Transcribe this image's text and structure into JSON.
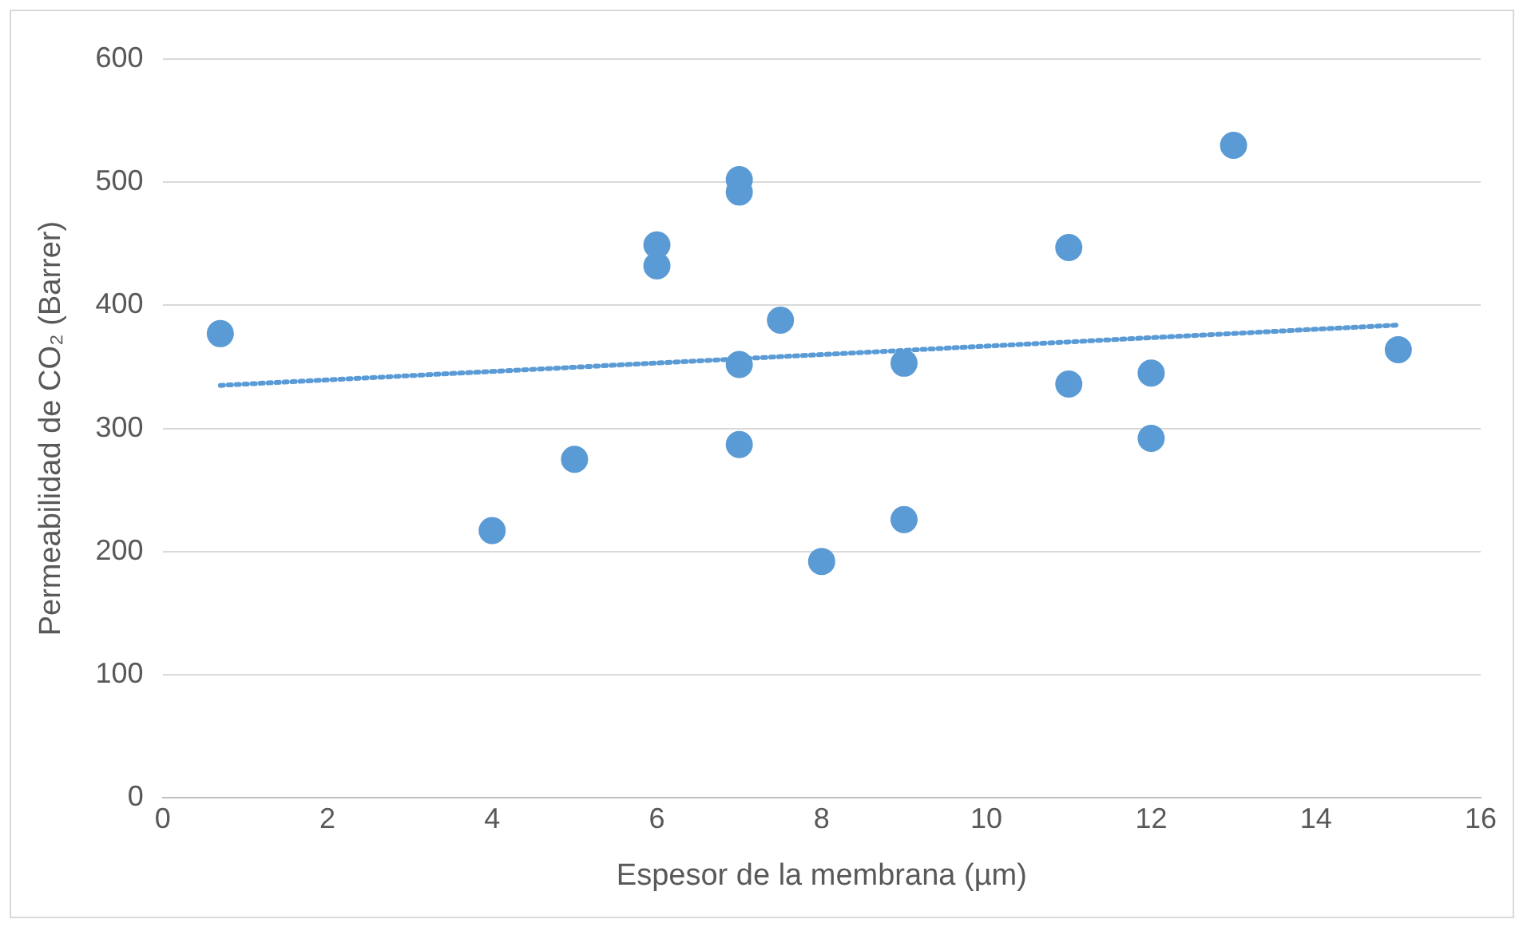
{
  "chart_data": {
    "type": "scatter",
    "xlabel": "Espesor de la membrana (µm)",
    "ylabel": "Permeabilidad de CO₂ (Barrer)",
    "xlim": [
      0,
      16
    ],
    "ylim": [
      0,
      600
    ],
    "xticks": [
      0,
      2,
      4,
      6,
      8,
      10,
      12,
      14,
      16
    ],
    "yticks": [
      0,
      100,
      200,
      300,
      400,
      500,
      600
    ],
    "grid": "y",
    "legend": false,
    "marker": "circle",
    "series": [
      {
        "type": "scatter",
        "color": "#5b9bd5",
        "x": [
          0.7,
          4,
          5,
          6,
          6,
          7,
          7,
          7,
          7,
          7.5,
          8,
          9,
          9,
          11,
          11,
          12,
          12,
          13,
          15
        ],
        "values": [
          377,
          217,
          275,
          449,
          432,
          502,
          492,
          352,
          287,
          388,
          192,
          353,
          226,
          447,
          336,
          345,
          292,
          530,
          364
        ]
      },
      {
        "type": "line",
        "color": "#5b9bd5",
        "line_style": "dotted",
        "marker": "none",
        "x": [
          0.7,
          15
        ],
        "values": [
          335,
          384
        ]
      }
    ]
  }
}
